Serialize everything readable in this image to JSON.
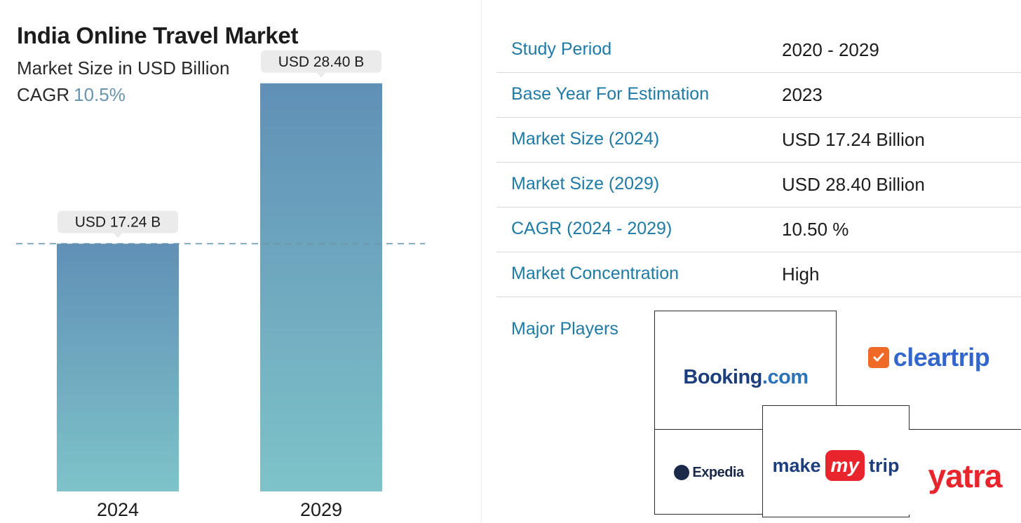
{
  "header": {
    "title": "India Online Travel Market",
    "subtitle": "Market Size in USD Billion",
    "cagr_label": "CAGR",
    "cagr_value": "10.5%"
  },
  "chart_data": {
    "type": "bar",
    "title": "India Online Travel Market",
    "subtitle": "Market Size in USD Billion",
    "categories": [
      "2024",
      "2029"
    ],
    "values": [
      17.24,
      28.4
    ],
    "data_labels": [
      "USD 17.24 B",
      "USD 28.40 B"
    ],
    "xlabel": "",
    "ylabel": "",
    "ylim": [
      0,
      30
    ],
    "grid": false,
    "reference_line": 17.24,
    "bar_gradient": {
      "top": "#6090b6",
      "bottom": "#7ec3c9"
    },
    "label_box_color": "#ebebeb",
    "reference_line_color": "#6b94ad"
  },
  "report": {
    "rows": [
      {
        "label": "Study Period",
        "value": "2020 - 2029"
      },
      {
        "label": "Base Year For Estimation",
        "value": "2023"
      },
      {
        "label": "Market Size (2024)",
        "value": "USD 17.24 Billion"
      },
      {
        "label": "Market Size (2029)",
        "value": "USD 28.40 Billion"
      },
      {
        "label": "CAGR (2024 - 2029)",
        "value": "10.50 %"
      },
      {
        "label": "Market Concentration",
        "value": "High"
      }
    ],
    "players_label": "Major Players"
  },
  "players": [
    {
      "name": "Booking.com",
      "logo_text_main": "Booking",
      "logo_text_suffix": ".com",
      "icon": "booking-logo"
    },
    {
      "name": "cleartrip",
      "logo_text": "cleartrip",
      "icon": "cleartrip-logo",
      "color": "#3366cc",
      "accent": "#ee6a26"
    },
    {
      "name": "Expedia",
      "logo_text": "Expedia",
      "icon": "expedia-logo"
    },
    {
      "name": "makemytrip",
      "logo_make": "make",
      "logo_my": "my",
      "logo_trip": "trip",
      "icon": "makemytrip-logo",
      "accent": "#e8242c"
    },
    {
      "name": "yatra",
      "logo_text": "yatra",
      "icon": "yatra-logo",
      "color": "#e8242c"
    }
  ]
}
